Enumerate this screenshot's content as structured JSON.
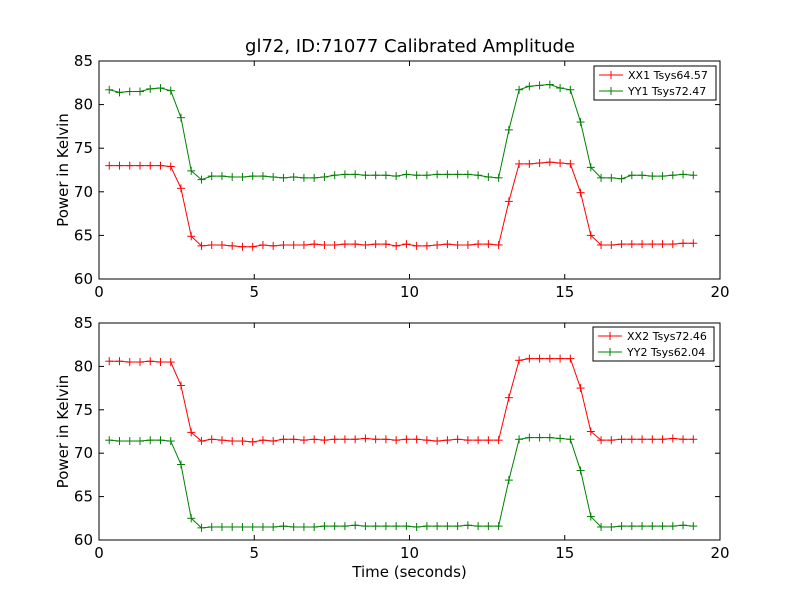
{
  "figure": {
    "title": "gl72, ID:71077 Calibrated Amplitude",
    "background": "#ffffff"
  },
  "chart_data": [
    {
      "type": "line",
      "title": "gl72, ID:71077 Calibrated Amplitude",
      "xlabel": "",
      "ylabel": "Power in Kelvin",
      "xlim": [
        0,
        20
      ],
      "ylim": [
        60,
        85
      ],
      "xticks": [
        "0",
        "5",
        "10",
        "15",
        "20"
      ],
      "yticks": [
        "60",
        "65",
        "70",
        "75",
        "80",
        "85"
      ],
      "grid": false,
      "legend_position": "top-right",
      "x": [
        0.33,
        0.66,
        0.99,
        1.32,
        1.65,
        1.98,
        2.31,
        2.64,
        2.97,
        3.3,
        3.63,
        3.96,
        4.29,
        4.62,
        4.95,
        5.28,
        5.61,
        5.94,
        6.27,
        6.6,
        6.93,
        7.26,
        7.59,
        7.92,
        8.25,
        8.58,
        8.91,
        9.24,
        9.57,
        9.9,
        10.23,
        10.56,
        10.89,
        11.22,
        11.55,
        11.88,
        12.21,
        12.54,
        12.87,
        13.2,
        13.53,
        13.86,
        14.19,
        14.52,
        14.85,
        15.18,
        15.51,
        15.84,
        16.17,
        16.5,
        16.83,
        17.16,
        17.49,
        17.82,
        18.15,
        18.48,
        18.81,
        19.14
      ],
      "series": [
        {
          "name": "XX1 Tsys64.57",
          "color": "#ff0000",
          "values": [
            73.0,
            73.0,
            73.0,
            73.0,
            73.0,
            73.0,
            72.9,
            70.4,
            64.9,
            63.8,
            63.9,
            63.9,
            63.8,
            63.7,
            63.7,
            63.9,
            63.8,
            63.9,
            63.9,
            63.9,
            64.0,
            63.9,
            63.9,
            64.0,
            64.0,
            63.9,
            64.0,
            64.0,
            63.8,
            64.0,
            63.8,
            63.8,
            63.9,
            64.0,
            63.9,
            63.9,
            64.0,
            64.0,
            63.9,
            68.9,
            73.2,
            73.2,
            73.3,
            73.4,
            73.3,
            73.2,
            69.9,
            65.0,
            63.9,
            63.9,
            64.0,
            64.0,
            64.0,
            64.0,
            64.0,
            64.0,
            64.1,
            64.1
          ]
        },
        {
          "name": "YY1 Tsys72.47",
          "color": "#008000",
          "values": [
            81.7,
            81.4,
            81.5,
            81.5,
            81.8,
            81.9,
            81.6,
            78.5,
            72.4,
            71.4,
            71.8,
            71.8,
            71.7,
            71.7,
            71.8,
            71.8,
            71.7,
            71.6,
            71.7,
            71.6,
            71.6,
            71.7,
            71.9,
            72.0,
            72.0,
            71.9,
            71.9,
            71.9,
            71.8,
            72.0,
            71.9,
            71.9,
            72.0,
            72.0,
            72.0,
            72.0,
            71.9,
            71.7,
            71.6,
            77.1,
            81.7,
            82.1,
            82.2,
            82.3,
            81.9,
            81.7,
            78.0,
            72.8,
            71.6,
            71.6,
            71.5,
            71.9,
            71.9,
            71.8,
            71.8,
            71.9,
            72.0,
            71.9
          ]
        }
      ]
    },
    {
      "type": "line",
      "title": "",
      "xlabel": "Time (seconds)",
      "ylabel": "Power in Kelvin",
      "xlim": [
        0,
        20
      ],
      "ylim": [
        60,
        85
      ],
      "xticks": [
        "0",
        "5",
        "10",
        "15",
        "20"
      ],
      "yticks": [
        "60",
        "65",
        "70",
        "75",
        "80",
        "85"
      ],
      "grid": false,
      "legend_position": "top-right",
      "x": [
        0.33,
        0.66,
        0.99,
        1.32,
        1.65,
        1.98,
        2.31,
        2.64,
        2.97,
        3.3,
        3.63,
        3.96,
        4.29,
        4.62,
        4.95,
        5.28,
        5.61,
        5.94,
        6.27,
        6.6,
        6.93,
        7.26,
        7.59,
        7.92,
        8.25,
        8.58,
        8.91,
        9.24,
        9.57,
        9.9,
        10.23,
        10.56,
        10.89,
        11.22,
        11.55,
        11.88,
        12.21,
        12.54,
        12.87,
        13.2,
        13.53,
        13.86,
        14.19,
        14.52,
        14.85,
        15.18,
        15.51,
        15.84,
        16.17,
        16.5,
        16.83,
        17.16,
        17.49,
        17.82,
        18.15,
        18.48,
        18.81,
        19.14
      ],
      "series": [
        {
          "name": "XX2 Tsys72.46",
          "color": "#ff0000",
          "values": [
            80.6,
            80.6,
            80.5,
            80.5,
            80.6,
            80.5,
            80.5,
            77.8,
            72.4,
            71.4,
            71.6,
            71.5,
            71.4,
            71.4,
            71.3,
            71.5,
            71.4,
            71.6,
            71.6,
            71.5,
            71.6,
            71.5,
            71.6,
            71.6,
            71.6,
            71.7,
            71.6,
            71.6,
            71.5,
            71.6,
            71.6,
            71.5,
            71.4,
            71.5,
            71.6,
            71.5,
            71.5,
            71.5,
            71.5,
            76.4,
            80.7,
            80.9,
            80.9,
            80.9,
            80.9,
            80.9,
            77.5,
            72.5,
            71.5,
            71.5,
            71.6,
            71.6,
            71.6,
            71.6,
            71.6,
            71.7,
            71.6,
            71.6
          ]
        },
        {
          "name": "YY2 Tsys62.04",
          "color": "#008000",
          "values": [
            71.5,
            71.4,
            71.4,
            71.4,
            71.5,
            71.5,
            71.4,
            68.7,
            62.5,
            61.4,
            61.5,
            61.5,
            61.5,
            61.5,
            61.5,
            61.5,
            61.5,
            61.6,
            61.5,
            61.5,
            61.5,
            61.6,
            61.6,
            61.6,
            61.7,
            61.6,
            61.6,
            61.6,
            61.6,
            61.6,
            61.5,
            61.6,
            61.6,
            61.6,
            61.6,
            61.7,
            61.6,
            61.6,
            61.6,
            66.9,
            71.6,
            71.8,
            71.8,
            71.8,
            71.7,
            71.6,
            68.0,
            62.7,
            61.5,
            61.5,
            61.6,
            61.6,
            61.6,
            61.6,
            61.6,
            61.6,
            61.7,
            61.6
          ]
        }
      ]
    }
  ]
}
